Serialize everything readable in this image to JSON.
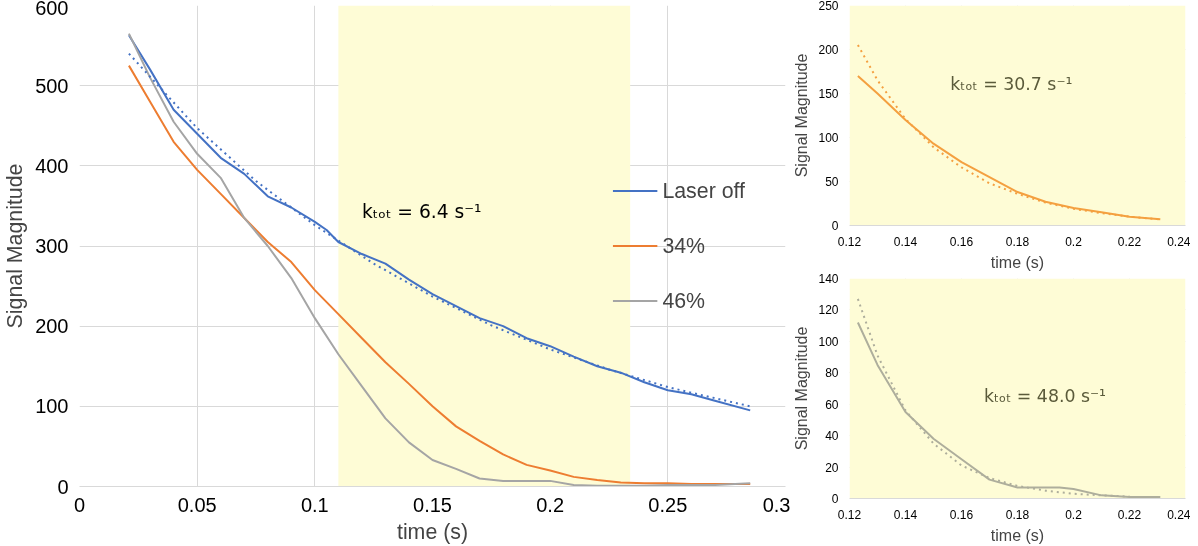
{
  "chart_data": [
    {
      "type": "line",
      "xlabel": "time (s)",
      "ylabel": "Signal Magnitude",
      "xlim": [
        0,
        0.3
      ],
      "ylim": [
        0,
        600
      ],
      "xticks": [
        0,
        0.05,
        0.1,
        0.15,
        0.2,
        0.25,
        0.3
      ],
      "yticks": [
        0,
        100,
        200,
        300,
        400,
        500,
        600
      ],
      "grid": true,
      "legend": "right",
      "annotations": [
        "kₜₒₜ = 6.4 s⁻¹"
      ],
      "bands": [
        {
          "axis": "x",
          "from": 0.11,
          "to": 0.234,
          "color": "#fefcd6"
        }
      ],
      "series": [
        {
          "name": "Laser off",
          "color": "#4472c4",
          "x": [
            0.021,
            0.03,
            0.04,
            0.05,
            0.06,
            0.07,
            0.08,
            0.09,
            0.1,
            0.105,
            0.11,
            0.12,
            0.13,
            0.14,
            0.15,
            0.16,
            0.17,
            0.18,
            0.19,
            0.2,
            0.21,
            0.22,
            0.23,
            0.24,
            0.25,
            0.26,
            0.27,
            0.285
          ],
          "values": [
            563,
            520,
            470,
            440,
            410,
            390,
            362,
            348,
            330,
            320,
            305,
            290,
            278,
            258,
            240,
            225,
            210,
            200,
            185,
            175,
            162,
            150,
            142,
            130,
            120,
            115,
            107,
            95
          ]
        },
        {
          "name": "34%",
          "color": "#ed7d31",
          "x": [
            0.021,
            0.03,
            0.04,
            0.05,
            0.06,
            0.07,
            0.08,
            0.09,
            0.1,
            0.11,
            0.12,
            0.13,
            0.14,
            0.15,
            0.16,
            0.17,
            0.18,
            0.19,
            0.2,
            0.21,
            0.22,
            0.23,
            0.24,
            0.25,
            0.26,
            0.27,
            0.285
          ],
          "values": [
            525,
            480,
            430,
            395,
            365,
            335,
            305,
            280,
            245,
            215,
            185,
            155,
            128,
            100,
            75,
            57,
            40,
            27,
            20,
            12,
            8,
            5,
            4,
            4,
            3,
            3,
            3
          ]
        },
        {
          "name": "46%",
          "color": "#a5a5a5",
          "x": [
            0.021,
            0.03,
            0.04,
            0.05,
            0.06,
            0.07,
            0.08,
            0.09,
            0.1,
            0.11,
            0.12,
            0.13,
            0.14,
            0.15,
            0.16,
            0.17,
            0.18,
            0.19,
            0.2,
            0.21,
            0.22,
            0.23,
            0.24,
            0.25,
            0.26,
            0.27,
            0.285
          ],
          "values": [
            565,
            510,
            455,
            415,
            385,
            335,
            300,
            260,
            210,
            165,
            125,
            85,
            55,
            33,
            22,
            10,
            7,
            7,
            7,
            2,
            1,
            1,
            1,
            2,
            2,
            2,
            4
          ]
        },
        {
          "color": "#4472c4",
          "line_style": "dotted",
          "x": [
            0.021,
            0.05,
            0.075,
            0.1,
            0.125,
            0.15,
            0.175,
            0.2,
            0.225,
            0.25,
            0.26,
            0.285
          ],
          "values": [
            540,
            447,
            381,
            326,
            278,
            237,
            201,
            171,
            146,
            124,
            117,
            100
          ]
        }
      ]
    },
    {
      "type": "line",
      "xlabel": "time (s)",
      "ylabel": "Signal Magnitude",
      "xlim": [
        0.12,
        0.24
      ],
      "ylim": [
        0,
        250
      ],
      "xticks": [
        0.12,
        0.14,
        0.16,
        0.18,
        0.2,
        0.22,
        0.24
      ],
      "yticks": [
        0,
        50,
        100,
        150,
        200,
        250
      ],
      "grid": true,
      "annotations": [
        "kₜₒₜ = 30.7 s⁻¹"
      ],
      "bands": [
        {
          "axis": "x",
          "from": 0.12,
          "to": 0.24,
          "color": "#fefcd6"
        }
      ],
      "series": [
        {
          "color": "#f4a040",
          "x": [
            0.123,
            0.13,
            0.14,
            0.15,
            0.16,
            0.17,
            0.18,
            0.19,
            0.2,
            0.21,
            0.22,
            0.231
          ],
          "values": [
            170,
            150,
            120,
            93,
            72,
            55,
            38,
            27,
            20,
            15,
            10,
            7
          ]
        },
        {
          "color": "#f4a040",
          "line_style": "dotted",
          "x": [
            0.123,
            0.13,
            0.14,
            0.15,
            0.16,
            0.17,
            0.18,
            0.19,
            0.2,
            0.21,
            0.22,
            0.231
          ],
          "values": [
            205,
            165,
            121,
            89,
            66,
            48,
            36,
            26,
            19,
            14,
            10,
            7
          ]
        }
      ]
    },
    {
      "type": "line",
      "xlabel": "time (s)",
      "ylabel": "Signal Magnitude",
      "xlim": [
        0.12,
        0.24
      ],
      "ylim": [
        0,
        140
      ],
      "xticks": [
        0.12,
        0.14,
        0.16,
        0.18,
        0.2,
        0.22,
        0.24
      ],
      "yticks": [
        0,
        20,
        40,
        60,
        80,
        100,
        120,
        140
      ],
      "grid": true,
      "annotations": [
        "kₜₒₜ = 48.0 s⁻¹"
      ],
      "bands": [
        {
          "axis": "x",
          "from": 0.12,
          "to": 0.24,
          "color": "#fefcd6"
        }
      ],
      "series": [
        {
          "color": "#aeae9c",
          "x": [
            0.123,
            0.13,
            0.14,
            0.15,
            0.16,
            0.17,
            0.18,
            0.19,
            0.195,
            0.2,
            0.21,
            0.22,
            0.231
          ],
          "values": [
            112,
            85,
            55,
            38,
            25,
            12,
            7,
            7,
            7,
            6,
            2,
            1,
            1
          ]
        },
        {
          "color": "#aeae9c",
          "line_style": "dotted",
          "x": [
            0.123,
            0.13,
            0.14,
            0.15,
            0.16,
            0.17,
            0.18,
            0.19,
            0.2,
            0.21,
            0.22
          ],
          "values": [
            127,
            91,
            56,
            35,
            21,
            13,
            8,
            5,
            3,
            2,
            1.2
          ]
        }
      ]
    }
  ]
}
